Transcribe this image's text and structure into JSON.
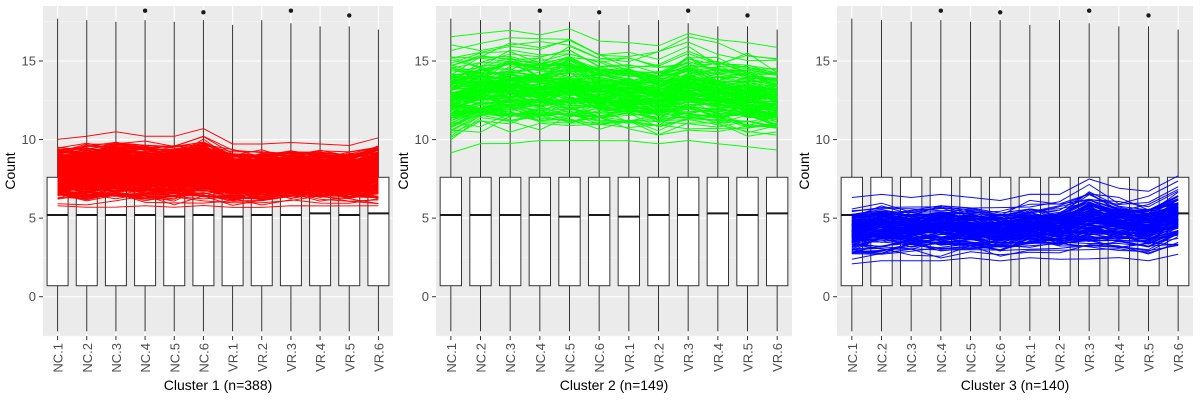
{
  "chart_data": [
    {
      "type": "box+line",
      "title": "",
      "xlabel": "Cluster 1 (n=388)",
      "ylabel": "Count",
      "ylim": [
        -2.5,
        18.5
      ],
      "yticks": [
        0,
        5,
        10,
        15
      ],
      "categories": [
        "NC.1",
        "NC.2",
        "NC.3",
        "NC.4",
        "NC.5",
        "NC.6",
        "VR.1",
        "VR.2",
        "VR.3",
        "VR.4",
        "VR.5",
        "VR.6"
      ],
      "line_color": "#ff0000",
      "line_band": {
        "low": [
          5.7,
          5.6,
          5.6,
          5.7,
          5.6,
          5.7,
          5.6,
          5.6,
          5.7,
          5.7,
          5.7,
          5.7
        ],
        "high": [
          10.1,
          10.3,
          10.6,
          10.3,
          10.3,
          10.8,
          9.8,
          9.8,
          9.9,
          9.8,
          9.7,
          10.2
        ],
        "count": 388
      },
      "box_stats": {
        "whisker_low": [
          -2.2,
          -2.2,
          -2.2,
          -2.2,
          -2.2,
          -2.2,
          -2.2,
          -2.2,
          -2.2,
          -2.2,
          -2.2,
          -2.2
        ],
        "q1": [
          0.7,
          0.7,
          0.7,
          0.7,
          0.7,
          0.7,
          0.7,
          0.7,
          0.7,
          0.7,
          0.7,
          0.7
        ],
        "median": [
          5.2,
          5.2,
          5.2,
          5.2,
          5.1,
          5.2,
          5.1,
          5.2,
          5.2,
          5.3,
          5.2,
          5.3
        ],
        "q3": [
          7.6,
          7.6,
          7.6,
          7.6,
          7.6,
          7.6,
          7.6,
          7.6,
          7.6,
          7.6,
          7.6,
          7.6
        ],
        "whisker_high": [
          17.7,
          17.6,
          17.5,
          17.6,
          17.5,
          17.6,
          17.3,
          17.6,
          17.4,
          17.2,
          17.2,
          17.0
        ],
        "outliers": [
          null,
          null,
          null,
          18.2,
          null,
          18.1,
          null,
          null,
          18.2,
          null,
          17.9,
          null
        ]
      }
    },
    {
      "type": "box+line",
      "title": "",
      "xlabel": "Cluster 2 (n=149)",
      "ylabel": "Count",
      "ylim": [
        -2.5,
        18.5
      ],
      "yticks": [
        0,
        5,
        10,
        15
      ],
      "categories": [
        "NC.1",
        "NC.2",
        "NC.3",
        "NC.4",
        "NC.5",
        "NC.6",
        "VR.1",
        "VR.2",
        "VR.3",
        "VR.4",
        "VR.5",
        "VR.6"
      ],
      "line_color": "#00ff00",
      "line_band": {
        "low": [
          9.0,
          9.6,
          9.6,
          9.8,
          9.8,
          9.8,
          9.8,
          9.6,
          9.8,
          9.6,
          9.4,
          9.2
        ],
        "high": [
          16.7,
          16.9,
          17.1,
          16.8,
          17.2,
          16.4,
          16.3,
          16.1,
          16.9,
          16.5,
          16.3,
          16.0
        ],
        "count": 149
      },
      "box_stats": {
        "whisker_low": [
          -2.2,
          -2.2,
          -2.2,
          -2.2,
          -2.2,
          -2.2,
          -2.2,
          -2.2,
          -2.2,
          -2.2,
          -2.2,
          -2.2
        ],
        "q1": [
          0.7,
          0.7,
          0.7,
          0.7,
          0.7,
          0.7,
          0.7,
          0.7,
          0.7,
          0.7,
          0.7,
          0.7
        ],
        "median": [
          5.2,
          5.2,
          5.2,
          5.2,
          5.1,
          5.2,
          5.1,
          5.2,
          5.2,
          5.3,
          5.2,
          5.3
        ],
        "q3": [
          7.6,
          7.6,
          7.6,
          7.6,
          7.6,
          7.6,
          7.6,
          7.6,
          7.6,
          7.6,
          7.6,
          7.6
        ],
        "whisker_high": [
          17.7,
          17.6,
          17.5,
          17.6,
          17.5,
          17.6,
          17.3,
          17.6,
          17.4,
          17.2,
          17.2,
          17.0
        ],
        "outliers": [
          null,
          null,
          null,
          18.2,
          null,
          18.1,
          null,
          null,
          18.2,
          null,
          17.9,
          null
        ]
      }
    },
    {
      "type": "box+line",
      "title": "",
      "xlabel": "Cluster 3 (n=140)",
      "ylabel": "Count",
      "ylim": [
        -2.5,
        18.5
      ],
      "yticks": [
        0,
        5,
        10,
        15
      ],
      "categories": [
        "NC.1",
        "NC.2",
        "NC.3",
        "NC.4",
        "NC.5",
        "NC.6",
        "VR.1",
        "VR.2",
        "VR.3",
        "VR.4",
        "VR.5",
        "VR.6"
      ],
      "line_color": "#0000ff",
      "line_band": {
        "low": [
          2.0,
          2.2,
          2.2,
          2.2,
          2.4,
          2.2,
          2.4,
          2.3,
          2.3,
          2.4,
          2.2,
          2.6
        ],
        "high": [
          6.4,
          6.6,
          6.4,
          6.6,
          6.4,
          6.2,
          6.6,
          6.6,
          7.6,
          7.0,
          6.8,
          7.8
        ],
        "count": 140
      },
      "box_stats": {
        "whisker_low": [
          -2.2,
          -2.2,
          -2.2,
          -2.2,
          -2.2,
          -2.2,
          -2.2,
          -2.2,
          -2.2,
          -2.2,
          -2.2,
          -2.2
        ],
        "q1": [
          0.7,
          0.7,
          0.7,
          0.7,
          0.7,
          0.7,
          0.7,
          0.7,
          0.7,
          0.7,
          0.7,
          0.7
        ],
        "median": [
          5.2,
          5.2,
          5.2,
          5.2,
          5.1,
          5.2,
          5.1,
          5.2,
          5.2,
          5.3,
          5.2,
          5.3
        ],
        "q3": [
          7.6,
          7.6,
          7.6,
          7.6,
          7.6,
          7.6,
          7.6,
          7.6,
          7.6,
          7.6,
          7.6,
          7.6
        ],
        "whisker_high": [
          17.7,
          17.6,
          17.5,
          17.6,
          17.5,
          17.6,
          17.3,
          17.6,
          17.4,
          17.2,
          17.2,
          17.0
        ],
        "outliers": [
          null,
          null,
          null,
          18.2,
          null,
          18.1,
          null,
          null,
          18.2,
          null,
          17.9,
          null
        ]
      }
    }
  ],
  "colors": {
    "panel_background": "#ebebeb",
    "grid_major": "#ffffff",
    "box_fill": "#ffffff",
    "box_stroke": "#333333"
  }
}
